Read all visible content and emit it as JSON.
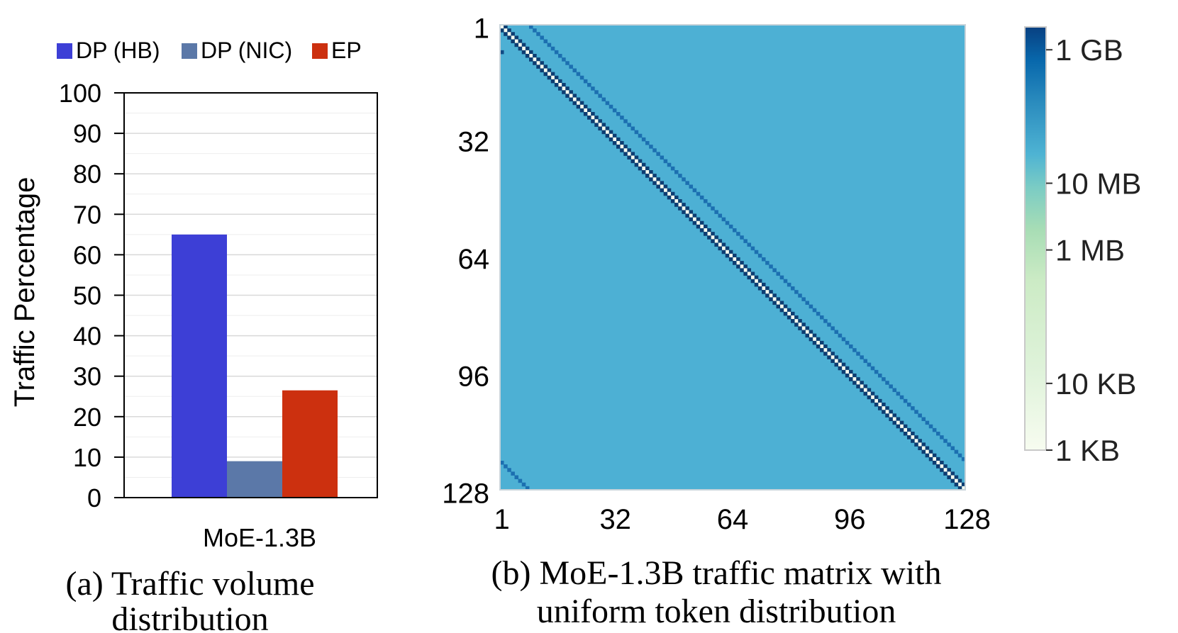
{
  "chart_data": [
    {
      "type": "bar",
      "panel": "a",
      "categories": [
        "MoE-1.3B"
      ],
      "series": [
        {
          "name": "DP (HB)",
          "values": [
            65
          ],
          "color": "#3d3fd6"
        },
        {
          "name": "DP (NIC)",
          "values": [
            9
          ],
          "color": "#5b78a8"
        },
        {
          "name": "EP",
          "values": [
            26.5
          ],
          "color": "#cc300f"
        }
      ],
      "xlabel": "MoE-1.3B",
      "ylabel": "Traffic Percentage",
      "ylim": [
        0,
        100
      ],
      "yticks": [
        "0",
        "10",
        "20",
        "30",
        "40",
        "50",
        "60",
        "70",
        "80",
        "90",
        "100"
      ],
      "grid": true,
      "legend_position": "top",
      "caption_lines": [
        "(a) Traffic volume",
        "distribution"
      ]
    },
    {
      "type": "heatmap",
      "panel": "b",
      "n": 128,
      "description_values": {
        "background": "10 MB",
        "main_diagonal": "1 KB",
        "adjacent_diagonal": "1 GB",
        "offset_diagonal_distance": 8,
        "offset_diagonal": "100 MB",
        "sparse_points_every": 8
      },
      "xticks": [
        "1",
        "32",
        "64",
        "96",
        "128"
      ],
      "yticks": [
        "1",
        "32",
        "64",
        "96",
        "128"
      ],
      "colorbar": {
        "ticks": [
          "1 GB",
          "10 MB",
          "1 MB",
          "10 KB",
          "1 KB"
        ],
        "colors_low_to_high": [
          "#f7fcf0",
          "#ccebc5",
          "#7bccc4",
          "#4eb3d3",
          "#2b8cbe",
          "#08589e",
          "#0a3f7a"
        ]
      },
      "cell_colors": {
        "background": "#4db0d4",
        "diagonal": "#f4fbef",
        "adjacent": "#0d3d72",
        "offset": "#1c6fb0",
        "dots": "#114b85"
      },
      "caption_lines": [
        "(b) MoE-1.3B traffic matrix with",
        "uniform token distribution"
      ]
    }
  ]
}
